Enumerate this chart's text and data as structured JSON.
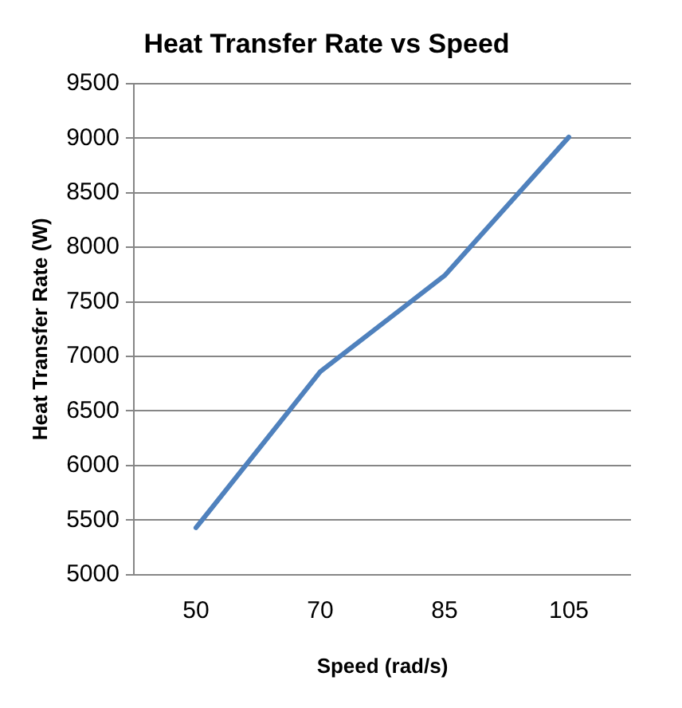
{
  "chart_data": {
    "type": "line",
    "title": "Heat Transfer Rate vs Speed",
    "xlabel": "Speed (rad/s)",
    "ylabel": "Heat Transfer Rate (W)",
    "categories": [
      "50",
      "70",
      "85",
      "105"
    ],
    "series": [
      {
        "color": "#4f81bd",
        "values": [
          5430,
          6860,
          7740,
          9010
        ]
      }
    ],
    "ylim": [
      5000,
      9500
    ],
    "yticks": [
      5000,
      5500,
      6000,
      6500,
      7000,
      7500,
      8000,
      8500,
      9000,
      9500
    ],
    "grid": "y",
    "legend": false,
    "marker": "none",
    "line_style": "solid"
  }
}
